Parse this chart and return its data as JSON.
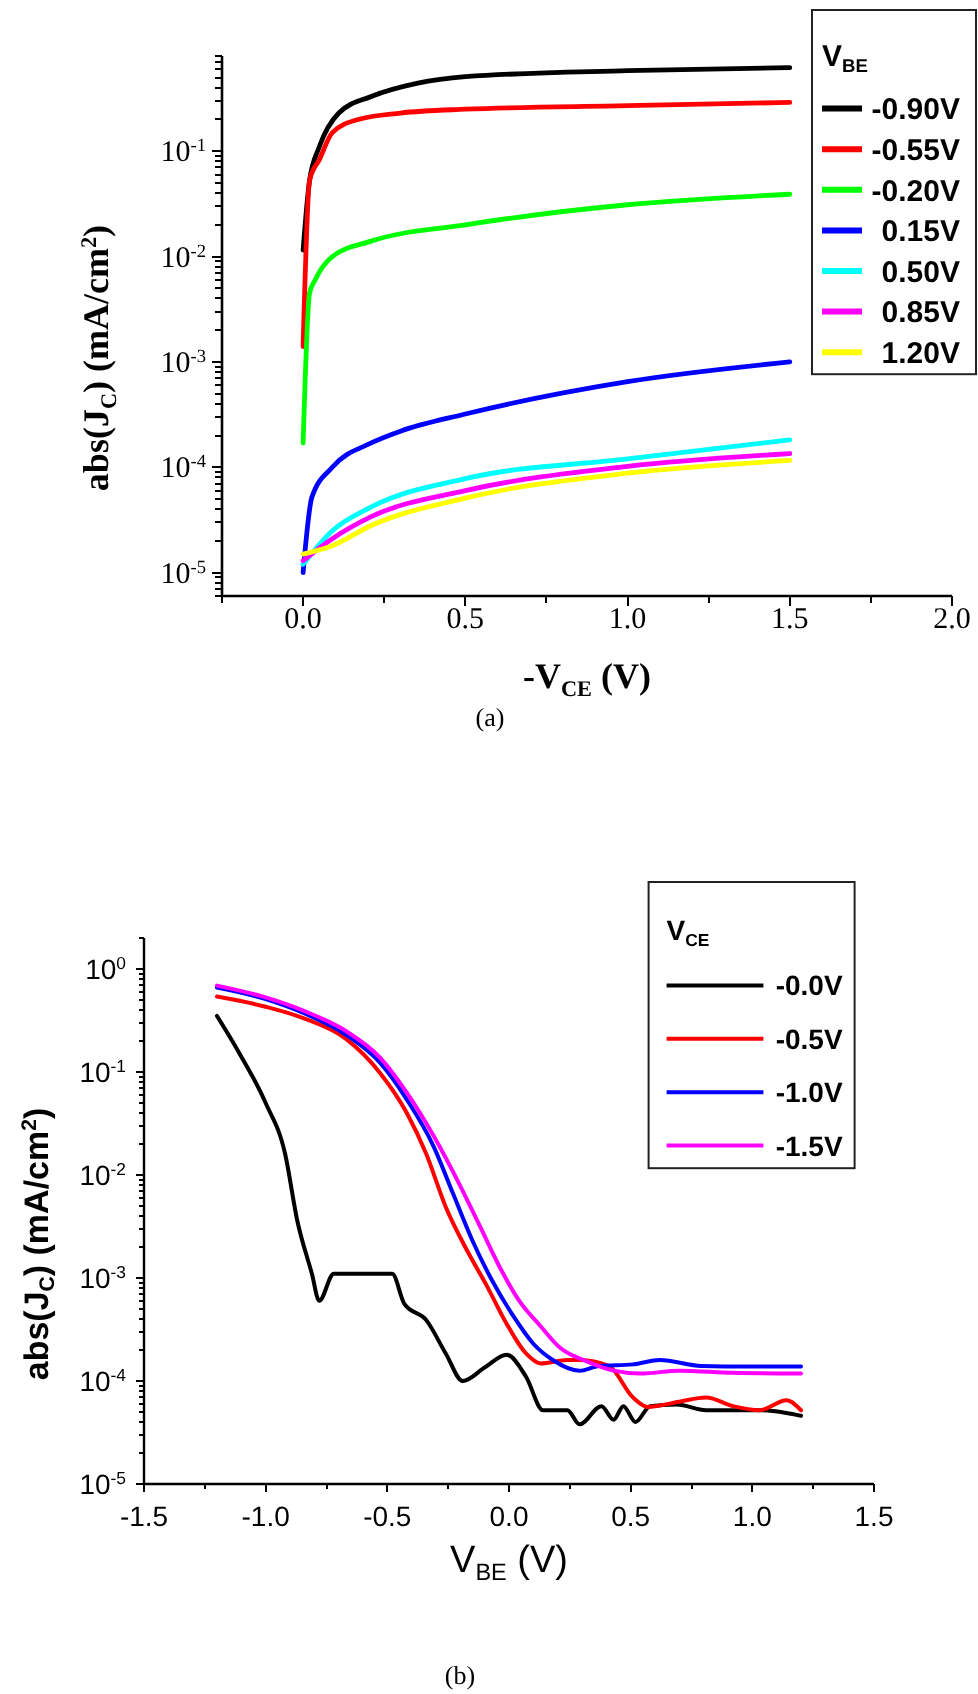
{
  "chart_data": [
    {
      "type": "line",
      "xlabel": "-V$_{CE}$ (V)",
      "ylabel": "abs(J$_{C}$) (mA/cm$^{2}$)",
      "legend_title": "V$_{BE}$",
      "legend": "top right",
      "log": "y",
      "annotations": [
        "(a)"
      ],
      "xlim": [
        -0.25,
        2
      ],
      "ylim": [
        6e-06,
        0.8
      ],
      "xticks": [
        {
          "value": -0.25,
          "label": null
        },
        {
          "value": 0,
          "label": "0.0"
        },
        {
          "value": 0.25,
          "label": null
        },
        0.5,
        {
          "value": 0.75,
          "label": null
        },
        {
          "value": 1,
          "label": "1.0"
        },
        {
          "value": 1.25,
          "label": null
        },
        1.5,
        {
          "value": 1.75,
          "label": null
        },
        {
          "value": 2,
          "label": "2.0"
        }
      ],
      "yticks": [
        {
          "value": 6e-06,
          "label": null
        },
        {
          "value": 7e-06,
          "label": null
        },
        {
          "value": 8e-06,
          "label": null
        },
        {
          "value": 9e-06,
          "label": null
        },
        {
          "value": 1e-05,
          "label": "10$^{-5}$"
        },
        {
          "value": 2e-05,
          "label": null
        },
        {
          "value": 3e-05,
          "label": null
        },
        {
          "value": 4e-05,
          "label": null
        },
        {
          "value": 5e-05,
          "label": null
        },
        {
          "value": 6e-05,
          "label": null
        },
        {
          "value": 7e-05,
          "label": null
        },
        {
          "value": 8e-05,
          "label": null
        },
        {
          "value": 9e-05,
          "label": null
        },
        {
          "value": 0.0001,
          "label": "10$^{-4}$"
        },
        {
          "value": 0.0002,
          "label": null
        },
        {
          "value": 0.0003,
          "label": null
        },
        {
          "value": 0.0004,
          "label": null
        },
        {
          "value": 0.0005,
          "label": null
        },
        {
          "value": 0.0006,
          "label": null
        },
        {
          "value": 0.0007,
          "label": null
        },
        {
          "value": 0.0008,
          "label": null
        },
        {
          "value": 0.0009,
          "label": null
        },
        {
          "value": 0.001,
          "label": "10$^{-3}$"
        },
        {
          "value": 0.002,
          "label": null
        },
        {
          "value": 0.003,
          "label": null
        },
        {
          "value": 0.004,
          "label": null
        },
        {
          "value": 0.005,
          "label": null
        },
        {
          "value": 0.006,
          "label": null
        },
        {
          "value": 0.007,
          "label": null
        },
        {
          "value": 0.008,
          "label": null
        },
        {
          "value": 0.009,
          "label": null
        },
        {
          "value": 0.01,
          "label": "10$^{-2}$"
        },
        {
          "value": 0.02,
          "label": null
        },
        {
          "value": 0.03,
          "label": null
        },
        {
          "value": 0.04,
          "label": null
        },
        {
          "value": 0.05,
          "label": null
        },
        {
          "value": 0.06,
          "label": null
        },
        {
          "value": 0.07,
          "label": null
        },
        {
          "value": 0.08,
          "label": null
        },
        {
          "value": 0.09,
          "label": null
        },
        {
          "value": 0.1,
          "label": "10$^{-1}$"
        },
        {
          "value": 0.2,
          "label": null
        },
        {
          "value": 0.3,
          "label": null
        },
        {
          "value": 0.4,
          "label": null
        },
        {
          "value": 0.5,
          "label": null
        },
        {
          "value": 0.6,
          "label": null
        },
        {
          "value": 0.7,
          "label": null
        },
        {
          "value": 0.8,
          "label": null
        }
      ],
      "series": [
        {
          "name": "-0.90V",
          "color": "#000000",
          "x": [
            0,
            0.02,
            0.05,
            0.11,
            0.21,
            0.35,
            0.5,
            1.0,
            1.5
          ],
          "values": [
            0.0115,
            0.053,
            0.11,
            0.23,
            0.33,
            0.44,
            0.51,
            0.58,
            0.62
          ]
        },
        {
          "name": "-0.55V",
          "color": "#ff0000",
          "x": [
            0,
            0.02,
            0.05,
            0.09,
            0.17,
            0.3,
            0.5,
            1.0,
            1.5
          ],
          "values": [
            0.0014,
            0.053,
            0.083,
            0.15,
            0.2,
            0.23,
            0.25,
            0.27,
            0.29
          ]
        },
        {
          "name": "-0.20V",
          "color": "#00ff00",
          "x": [
            0,
            0.02,
            0.037,
            0.09,
            0.21,
            0.5,
            1.0,
            1.5
          ],
          "values": [
            0.00017,
            0.0045,
            0.006,
            0.01,
            0.014,
            0.02,
            0.031,
            0.039
          ]
        },
        {
          "name": "0.15V",
          "color": "#0000ff",
          "x": [
            0,
            0.027,
            0.09,
            0.21,
            0.3,
            0.5,
            1.0,
            1.5
          ],
          "values": [
            1e-05,
            5.2e-05,
            0.0001,
            0.00017,
            0.00022,
            0.00032,
            0.00065,
            0.001
          ]
        },
        {
          "name": "0.50V",
          "color": "#00ffff",
          "x": [
            0,
            0.09,
            0.21,
            0.5,
            1.0,
            1.5
          ],
          "values": [
            1.2e-05,
            2.5e-05,
            4.2e-05,
            7.8e-05,
            0.00012,
            0.000182
          ]
        },
        {
          "name": "0.85V",
          "color": "#ff00ff",
          "x": [
            0,
            0.09,
            0.21,
            0.5,
            1.0,
            1.5
          ],
          "values": [
            1.3e-05,
            2.1e-05,
            3.4e-05,
            6e-05,
            0.000102,
            0.000135
          ]
        },
        {
          "name": "1.20V",
          "color": "#ffff00",
          "x": [
            0,
            0.09,
            0.21,
            0.5,
            1.0,
            1.5
          ],
          "values": [
            1.5e-05,
            1.8e-05,
            2.8e-05,
            5.1e-05,
            8.8e-05,
            0.000116
          ]
        }
      ]
    },
    {
      "type": "line",
      "xlabel": "V$_{BE}$ (V)",
      "ylabel": "abs(J$_{C}$) (mA/cm$^{2}$)",
      "legend_title": "V$_{CE}$",
      "legend": "top right",
      "log": "y",
      "annotations": [
        "(b)"
      ],
      "xlim": [
        -1.5,
        1.5
      ],
      "ylim": [
        1e-05,
        2
      ],
      "xticks": [
        -1.5,
        {
          "value": -1.25,
          "label": null
        },
        {
          "value": -1,
          "label": "-1.0"
        },
        {
          "value": -0.75,
          "label": null
        },
        -0.5,
        {
          "value": -0.25,
          "label": null
        },
        {
          "value": 0,
          "label": "0.0"
        },
        {
          "value": 0.25,
          "label": null
        },
        0.5,
        {
          "value": 0.75,
          "label": null
        },
        {
          "value": 1,
          "label": "1.0"
        },
        {
          "value": 1.25,
          "label": null
        },
        1.5
      ],
      "yticks": [
        {
          "value": 1e-05,
          "label": "10$^{-5}$"
        },
        {
          "value": 2e-05,
          "label": null
        },
        {
          "value": 3e-05,
          "label": null
        },
        {
          "value": 4e-05,
          "label": null
        },
        {
          "value": 5e-05,
          "label": null
        },
        {
          "value": 6e-05,
          "label": null
        },
        {
          "value": 7e-05,
          "label": null
        },
        {
          "value": 8e-05,
          "label": null
        },
        {
          "value": 9e-05,
          "label": null
        },
        {
          "value": 0.0001,
          "label": "10$^{-4}$"
        },
        {
          "value": 0.0002,
          "label": null
        },
        {
          "value": 0.0003,
          "label": null
        },
        {
          "value": 0.0004,
          "label": null
        },
        {
          "value": 0.0005,
          "label": null
        },
        {
          "value": 0.0006,
          "label": null
        },
        {
          "value": 0.0007,
          "label": null
        },
        {
          "value": 0.0008,
          "label": null
        },
        {
          "value": 0.0009,
          "label": null
        },
        {
          "value": 0.001,
          "label": "10$^{-3}$"
        },
        {
          "value": 0.002,
          "label": null
        },
        {
          "value": 0.003,
          "label": null
        },
        {
          "value": 0.004,
          "label": null
        },
        {
          "value": 0.005,
          "label": null
        },
        {
          "value": 0.006,
          "label": null
        },
        {
          "value": 0.007,
          "label": null
        },
        {
          "value": 0.008,
          "label": null
        },
        {
          "value": 0.009,
          "label": null
        },
        {
          "value": 0.01,
          "label": "10$^{-2}$"
        },
        {
          "value": 0.02,
          "label": null
        },
        {
          "value": 0.03,
          "label": null
        },
        {
          "value": 0.04,
          "label": null
        },
        {
          "value": 0.05,
          "label": null
        },
        {
          "value": 0.06,
          "label": null
        },
        {
          "value": 0.07,
          "label": null
        },
        {
          "value": 0.08,
          "label": null
        },
        {
          "value": 0.09,
          "label": null
        },
        {
          "value": 0.1,
          "label": "10$^{-1}$"
        },
        {
          "value": 0.2,
          "label": null
        },
        {
          "value": 0.3,
          "label": null
        },
        {
          "value": 0.4,
          "label": null
        },
        {
          "value": 0.5,
          "label": null
        },
        {
          "value": 0.6,
          "label": null
        },
        {
          "value": 0.7,
          "label": null
        },
        {
          "value": 0.8,
          "label": null
        },
        {
          "value": 0.9,
          "label": null
        },
        {
          "value": 1,
          "label": "10$^{0}$"
        },
        {
          "value": 2,
          "label": null
        }
      ],
      "series": [
        {
          "name": "-0.0V",
          "color": "#000000",
          "x": [
            -1.2,
            -1.11,
            -1.0,
            -0.92,
            -0.87,
            -0.81,
            -0.78,
            -0.72,
            -0.62,
            -0.48,
            -0.43,
            -0.34,
            -0.26,
            -0.19,
            -0.1,
            -0.01,
            0.07,
            0.14,
            0.24,
            0.29,
            0.38,
            0.43,
            0.47,
            0.52,
            0.58,
            0.69,
            0.81,
            1.03,
            1.14,
            1.2
          ],
          "values": [
            0.35,
            0.155,
            0.05,
            0.016,
            0.0036,
            0.0011,
            0.0006,
            0.0011,
            0.0011,
            0.0011,
            0.00056,
            0.00039,
            0.000185,
            0.0001,
            0.000135,
            0.00018,
            0.00011,
            5.2e-05,
            5.2e-05,
            3.8e-05,
            5.7e-05,
            4.2e-05,
            5.7e-05,
            4e-05,
            5.7e-05,
            5.9e-05,
            5.2e-05,
            5.2e-05,
            4.9e-05,
            4.6e-05
          ]
        },
        {
          "name": "-0.5V",
          "color": "#ff0000",
          "x": [
            -1.2,
            -1.0,
            -0.84,
            -0.67,
            -0.53,
            -0.42,
            -0.34,
            -0.26,
            -0.18,
            -0.09,
            -0.01,
            0.07,
            0.13,
            0.24,
            0.29,
            0.41,
            0.51,
            0.57,
            0.7,
            0.81,
            0.92,
            1.03,
            1.14,
            1.2
          ],
          "values": [
            0.54,
            0.43,
            0.33,
            0.21,
            0.098,
            0.04,
            0.016,
            0.0049,
            0.002,
            0.00083,
            0.00036,
            0.000185,
            0.000148,
            0.00016,
            0.00016,
            0.00014,
            6.9e-05,
            5.6e-05,
            6.3e-05,
            6.9e-05,
            5.7e-05,
            5.2e-05,
            6.5e-05,
            5.2e-05
          ]
        },
        {
          "name": "-1.0V",
          "color": "#0000ff",
          "x": [
            -1.2,
            -1.0,
            -0.84,
            -0.67,
            -0.53,
            -0.42,
            -0.31,
            -0.23,
            -0.15,
            -0.07,
            0.02,
            0.1,
            0.18,
            0.29,
            0.37,
            0.51,
            0.62,
            0.79,
            0.98,
            1.2
          ],
          "values": [
            0.66,
            0.51,
            0.37,
            0.23,
            0.123,
            0.054,
            0.019,
            0.0066,
            0.0023,
            0.00095,
            0.00042,
            0.00023,
            0.00016,
            0.000126,
            0.00014,
            0.000145,
            0.00016,
            0.00014,
            0.000138,
            0.000138
          ]
        },
        {
          "name": "-1.5V",
          "color": "#ff00ff",
          "x": [
            -1.2,
            -1.0,
            -0.84,
            -0.67,
            -0.53,
            -0.42,
            -0.31,
            -0.2,
            -0.12,
            -0.04,
            0.04,
            0.13,
            0.21,
            0.32,
            0.43,
            0.54,
            0.7,
            0.92,
            1.2
          ],
          "values": [
            0.69,
            0.53,
            0.39,
            0.25,
            0.138,
            0.063,
            0.024,
            0.0078,
            0.0032,
            0.0013,
            0.00061,
            0.00034,
            0.00021,
            0.000155,
            0.000126,
            0.000118,
            0.000126,
            0.00012,
            0.000118
          ]
        }
      ]
    }
  ]
}
